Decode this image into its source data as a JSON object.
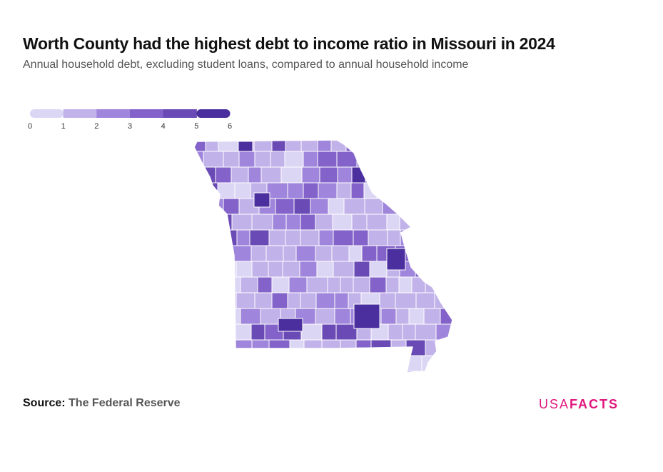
{
  "header": {
    "title": "Worth County had the highest debt to income ratio in Missouri in 2024",
    "subtitle": "Annual household debt, excluding student loans, compared to annual household income"
  },
  "legend": {
    "ticks": [
      "0",
      "1",
      "2",
      "3",
      "4",
      "5",
      "6"
    ],
    "colors": [
      "#dcd6f5",
      "#c2b2ea",
      "#9f85db",
      "#8363c9",
      "#6a4ab5",
      "#4b2f9e"
    ]
  },
  "map": {
    "state": "Missouri",
    "fill_scale": [
      "#dcd6f5",
      "#c2b2ea",
      "#9f85db",
      "#8363c9",
      "#6a4ab5",
      "#4b2f9e"
    ],
    "border_color": "#ffffff"
  },
  "footer": {
    "source_label": "Source:",
    "source_name": "The Federal Reserve",
    "logo_usa": "USA",
    "logo_facts": "FACTS"
  },
  "brand": {
    "accent": "#e0157d"
  }
}
